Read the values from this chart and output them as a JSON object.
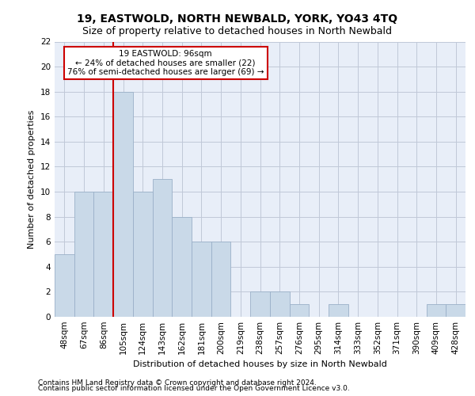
{
  "title": "19, EASTWOLD, NORTH NEWBALD, YORK, YO43 4TQ",
  "subtitle": "Size of property relative to detached houses in North Newbald",
  "xlabel": "Distribution of detached houses by size in North Newbald",
  "ylabel": "Number of detached properties",
  "categories": [
    "48sqm",
    "67sqm",
    "86sqm",
    "105sqm",
    "124sqm",
    "143sqm",
    "162sqm",
    "181sqm",
    "200sqm",
    "219sqm",
    "238sqm",
    "257sqm",
    "276sqm",
    "295sqm",
    "314sqm",
    "333sqm",
    "352sqm",
    "371sqm",
    "390sqm",
    "409sqm",
    "428sqm"
  ],
  "values": [
    5,
    10,
    10,
    18,
    10,
    11,
    8,
    6,
    6,
    0,
    2,
    2,
    1,
    0,
    1,
    0,
    0,
    0,
    0,
    1,
    1
  ],
  "bar_color": "#c9d9e8",
  "bar_edge_color": "#9ab0c8",
  "vline_x": 2.5,
  "vline_color": "#cc0000",
  "annotation_text": "19 EASTWOLD: 96sqm\n← 24% of detached houses are smaller (22)\n76% of semi-detached houses are larger (69) →",
  "annotation_box_color": "#ffffff",
  "annotation_box_edge": "#cc0000",
  "ylim": [
    0,
    22
  ],
  "yticks": [
    0,
    2,
    4,
    6,
    8,
    10,
    12,
    14,
    16,
    18,
    20,
    22
  ],
  "grid_color": "#c0c8d8",
  "background_color": "#e8eef8",
  "footer_line1": "Contains HM Land Registry data © Crown copyright and database right 2024.",
  "footer_line2": "Contains public sector information licensed under the Open Government Licence v3.0.",
  "title_fontsize": 10,
  "subtitle_fontsize": 9,
  "axis_label_fontsize": 8,
  "tick_fontsize": 7.5,
  "annotation_fontsize": 7.5,
  "footer_fontsize": 6.5
}
